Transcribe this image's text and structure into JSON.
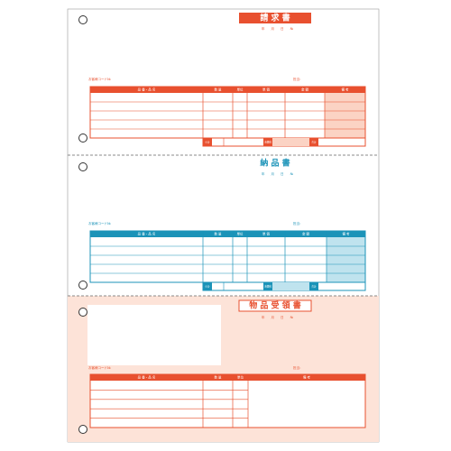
{
  "slips": [
    {
      "title": "請 求 書",
      "date_line": "年　　月　　日　　№",
      "code_label": "お客様コード№",
      "staff_label": "担当：",
      "headers": [
        "品 番・品 名",
        "数 量",
        "単位",
        "単 価",
        "金 額",
        "備 考"
      ],
      "totals": [
        "小計",
        "消費税",
        "合計"
      ]
    },
    {
      "title": "納 品 書",
      "date_line": "年　　月　　日　　№",
      "code_label": "お客様コード№",
      "staff_label": "担当：",
      "headers": [
        "品 番・品 名",
        "数 量",
        "単位",
        "単 価",
        "金 額",
        "備 考"
      ],
      "totals": [
        "小計",
        "消費税",
        "合計"
      ]
    },
    {
      "title": "物 品 受 領 書",
      "date_line": "年　　月　　日　　№",
      "code_label": "お客様コード№",
      "staff_label": "担当：",
      "headers": [
        "品 番・品 名",
        "数 量",
        "単位",
        "備 考"
      ]
    }
  ]
}
